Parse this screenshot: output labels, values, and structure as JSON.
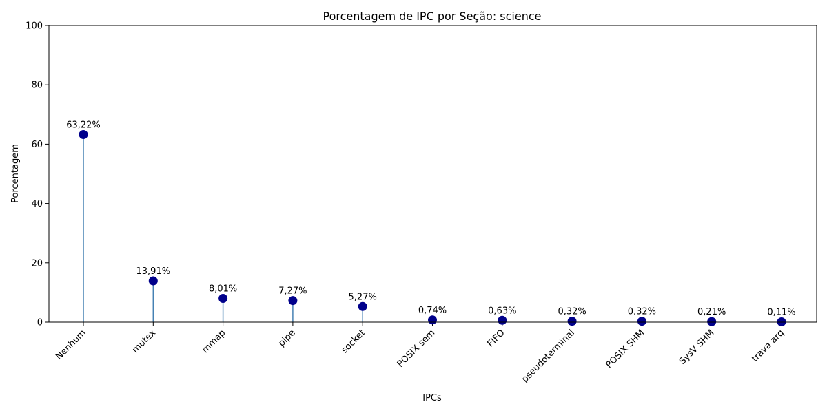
{
  "chart_data": {
    "type": "lollipop",
    "title": "Porcentagem de IPC por Seção: science",
    "xlabel": "IPCs",
    "ylabel": "Porcentagem",
    "ylim": [
      0,
      100
    ],
    "yticks": [
      0,
      20,
      40,
      60,
      80,
      100
    ],
    "categories": [
      "Nenhum",
      "mutex",
      "mmap",
      "pipe",
      "socket",
      "POSIX sem",
      "FIFO",
      "pseudoterminal",
      "POSIX SHM",
      "SysV SHM",
      "trava arq"
    ],
    "values": [
      63.22,
      13.91,
      8.01,
      7.27,
      5.27,
      0.74,
      0.63,
      0.32,
      0.32,
      0.21,
      0.11
    ],
    "labels": [
      "63,22%",
      "13,91%",
      "8,01%",
      "7,27%",
      "5,27%",
      "0,74%",
      "0,63%",
      "0,32%",
      "0,32%",
      "0,21%",
      "0,11%"
    ],
    "marker_color": "#00008b",
    "stem_color": "#4682b4",
    "grid": false
  }
}
